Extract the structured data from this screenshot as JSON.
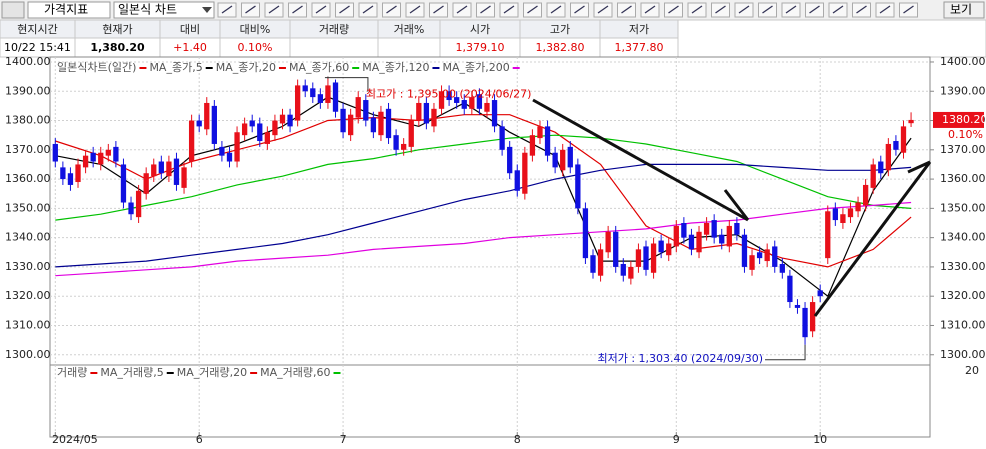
{
  "toolbar": {
    "indicator": "가격지표",
    "chart_style": "일본식 차트",
    "view": "보기"
  },
  "quote": {
    "columns": [
      {
        "label": "현지시간",
        "value": "10/22 15:41"
      },
      {
        "label": "현재가",
        "value": "1,380.20"
      },
      {
        "label": "대비",
        "value": "+1.40"
      },
      {
        "label": "대비%",
        "value": "0.10%"
      },
      {
        "label": "거래량"
      },
      {
        "label": "거래%"
      },
      {
        "label": "시가",
        "value": "1,379.10"
      },
      {
        "label": "고가",
        "value": "1,382.80"
      },
      {
        "label": "저가",
        "value": "1,377.80"
      }
    ]
  },
  "chart_data": {
    "type": "candlestick",
    "legend_title": "일본식차트(일간)",
    "legend_title_color": "#e00000",
    "up_color": "#e8101a",
    "down_color": "#1010e0",
    "open": [
      1372,
      1364,
      1362,
      1359,
      1364,
      1369,
      1365,
      1368,
      1371,
      1365,
      1352,
      1347,
      1355,
      1361,
      1366,
      1361,
      1367,
      1357,
      1366,
      1380,
      1377,
      1385,
      1371,
      1369,
      1366,
      1375,
      1380,
      1379,
      1372,
      1375,
      1379,
      1382,
      1380,
      1392,
      1391,
      1389,
      1386,
      1393,
      1384,
      1375,
      1381,
      1387,
      1381,
      1375,
      1384,
      1375,
      1370,
      1371,
      1380,
      1386,
      1378,
      1384,
      1390,
      1388,
      1387,
      1384,
      1389,
      1383,
      1387,
      1378,
      1371,
      1363,
      1355,
      1368,
      1374,
      1378,
      1369,
      1363,
      1371,
      1365,
      1350,
      1334,
      1327,
      1335,
      1342,
      1331,
      1326,
      1330,
      1337,
      1328,
      1339,
      1334,
      1337,
      1345,
      1341,
      1335,
      1341,
      1346,
      1341,
      1337,
      1345,
      1341,
      1329,
      1335,
      1332,
      1337,
      1331,
      1327,
      1317,
      1316,
      1308,
      1322,
      1333,
      1350,
      1345,
      1347,
      1349,
      1351,
      1357,
      1366,
      1363,
      1373,
      1369,
      1379.1
    ],
    "high": [
      1374,
      1366,
      1364,
      1367,
      1370,
      1371,
      1371,
      1372,
      1373,
      1367,
      1354,
      1358,
      1364,
      1367,
      1368,
      1368,
      1369,
      1366,
      1382,
      1382,
      1388,
      1387,
      1373,
      1371,
      1378,
      1381,
      1382,
      1381,
      1378,
      1382,
      1384,
      1384,
      1394,
      1394,
      1393,
      1391,
      1395,
      1394,
      1386,
      1384,
      1390,
      1389,
      1383,
      1385,
      1386,
      1377,
      1374,
      1382,
      1388,
      1388,
      1386,
      1392,
      1392,
      1390,
      1389,
      1390,
      1391,
      1388,
      1389,
      1380,
      1373,
      1365,
      1371,
      1377,
      1380,
      1380,
      1371,
      1372,
      1373,
      1367,
      1352,
      1336,
      1338,
      1344,
      1344,
      1333,
      1332,
      1338,
      1339,
      1340,
      1341,
      1340,
      1346,
      1347,
      1343,
      1344,
      1347,
      1348,
      1343,
      1346,
      1347,
      1343,
      1336,
      1337,
      1338,
      1339,
      1333,
      1329,
      1319,
      1318,
      1320,
      1324,
      1351,
      1352,
      1350,
      1352,
      1354,
      1360,
      1367,
      1368,
      1374,
      1375,
      1380,
      1382.8
    ],
    "low": [
      1364,
      1358,
      1356,
      1357,
      1362,
      1364,
      1363,
      1366,
      1364,
      1350,
      1346,
      1345,
      1353,
      1359,
      1360,
      1359,
      1356,
      1355,
      1364,
      1376,
      1375,
      1370,
      1366,
      1364,
      1364,
      1373,
      1376,
      1371,
      1370,
      1373,
      1377,
      1376,
      1378,
      1388,
      1386,
      1384,
      1384,
      1381,
      1374,
      1373,
      1379,
      1378,
      1374,
      1373,
      1372,
      1368,
      1368,
      1369,
      1378,
      1377,
      1376,
      1382,
      1385,
      1384,
      1382,
      1382,
      1382,
      1381,
      1376,
      1368,
      1360,
      1354,
      1353,
      1366,
      1372,
      1366,
      1362,
      1361,
      1362,
      1348,
      1331,
      1326,
      1325,
      1333,
      1328,
      1325,
      1324,
      1328,
      1327,
      1326,
      1333,
      1332,
      1335,
      1338,
      1334,
      1333,
      1339,
      1338,
      1336,
      1335,
      1339,
      1328,
      1327,
      1331,
      1330,
      1328,
      1326,
      1316,
      1314,
      1303.4,
      1306,
      1318,
      1331,
      1344,
      1343,
      1345,
      1347,
      1349,
      1355,
      1360,
      1361,
      1368,
      1367,
      1377.8
    ],
    "close": [
      1366,
      1360,
      1358,
      1365,
      1368,
      1366,
      1369,
      1370,
      1366,
      1352,
      1348,
      1356,
      1362,
      1365,
      1362,
      1366,
      1358,
      1364,
      1380,
      1378,
      1386,
      1372,
      1368,
      1366,
      1376,
      1379,
      1378,
      1373,
      1376,
      1380,
      1382,
      1378,
      1392,
      1390,
      1388,
      1386,
      1392,
      1383,
      1376,
      1382,
      1388,
      1380,
      1376,
      1383,
      1374,
      1370,
      1372,
      1380,
      1386,
      1379,
      1384,
      1390,
      1387,
      1386,
      1384,
      1388,
      1384,
      1386,
      1378,
      1370,
      1362,
      1356,
      1369,
      1375,
      1378,
      1368,
      1364,
      1370,
      1364,
      1350,
      1333,
      1328,
      1336,
      1342,
      1330,
      1327,
      1330,
      1336,
      1329,
      1338,
      1335,
      1338,
      1344,
      1340,
      1336,
      1342,
      1345,
      1340,
      1338,
      1344,
      1341,
      1330,
      1334,
      1333,
      1336,
      1330,
      1328,
      1318,
      1316,
      1306,
      1318,
      1320,
      1349,
      1346,
      1348,
      1350,
      1352,
      1358,
      1365,
      1362,
      1372,
      1370,
      1378,
      1380.2
    ],
    "last_price_label": "1380.20",
    "last_change_label": "0.10%",
    "high_annotation": "최고가 : 1,395.00 (2024/06/27)",
    "high_annotation_color": "#e00000",
    "low_annotation": "최저가 : 1,303.40 (2024/09/30)",
    "low_annotation_color": "#1010c0",
    "series": [
      {
        "name": "MA_종가,5",
        "color": "#000000",
        "x": [
          0,
          6,
          12,
          18,
          24,
          30,
          36,
          42,
          48,
          54,
          60,
          66,
          72,
          78,
          84,
          90,
          96,
          102,
          108,
          113
        ],
        "values": [
          1368,
          1365,
          1355,
          1368,
          1372,
          1378,
          1388,
          1382,
          1378,
          1386,
          1376,
          1368,
          1332,
          1332,
          1340,
          1341,
          1332,
          1320,
          1356,
          1374
        ]
      },
      {
        "name": "MA_종가,20",
        "color": "#e00000",
        "x": [
          0,
          6,
          12,
          18,
          24,
          30,
          36,
          42,
          48,
          54,
          60,
          66,
          72,
          78,
          84,
          90,
          96,
          102,
          108,
          113
        ],
        "values": [
          1373,
          1368,
          1360,
          1366,
          1370,
          1374,
          1380,
          1381,
          1380,
          1382,
          1382,
          1376,
          1365,
          1344,
          1336,
          1338,
          1333,
          1330,
          1336,
          1347
        ]
      },
      {
        "name": "MA_종가,60",
        "color": "#00c000",
        "x": [
          0,
          6,
          12,
          18,
          24,
          30,
          36,
          42,
          48,
          54,
          60,
          66,
          72,
          78,
          84,
          90,
          96,
          102,
          108,
          113
        ],
        "values": [
          1346,
          1348,
          1351,
          1354,
          1358,
          1361,
          1365,
          1367,
          1370,
          1372,
          1374,
          1375,
          1374,
          1372,
          1369,
          1366,
          1360,
          1354,
          1351,
          1350
        ]
      },
      {
        "name": "MA_종가,120",
        "color": "#000090",
        "x": [
          0,
          6,
          12,
          18,
          24,
          30,
          36,
          42,
          48,
          54,
          60,
          66,
          72,
          78,
          84,
          90,
          96,
          102,
          108,
          113
        ],
        "values": [
          1330,
          1331,
          1332,
          1334,
          1336,
          1338,
          1341,
          1345,
          1349,
          1353,
          1356,
          1360,
          1363,
          1365,
          1365,
          1365,
          1364,
          1363,
          1363,
          1364
        ]
      },
      {
        "name": "MA_종가,200",
        "color": "#e000e0",
        "x": [
          0,
          6,
          12,
          18,
          24,
          30,
          36,
          42,
          48,
          54,
          60,
          66,
          72,
          78,
          84,
          90,
          96,
          102,
          108,
          113
        ],
        "values": [
          1327,
          1328,
          1329,
          1330,
          1332,
          1333,
          1334,
          1336,
          1337,
          1338,
          1340,
          1341,
          1342,
          1343,
          1345,
          1346,
          1348,
          1350,
          1351,
          1352
        ]
      }
    ],
    "xlim": [
      -0.7,
      115.5
    ],
    "xticks": [
      {
        "value": 0,
        "label": "2024/05"
      },
      {
        "value": 19,
        "label": "6"
      },
      {
        "value": 38,
        "label": "7"
      },
      {
        "value": 61,
        "label": "8"
      },
      {
        "value": 82,
        "label": "9"
      },
      {
        "value": 101,
        "label": "10"
      }
    ],
    "ylim": [
      1296.5,
      1401.7
    ],
    "yticks": [
      {
        "value": 1300,
        "label": "1300.00"
      },
      {
        "value": 1310,
        "label": "1310.00"
      },
      {
        "value": 1320,
        "label": "1320.00"
      },
      {
        "value": 1330,
        "label": "1330.00"
      },
      {
        "value": 1340,
        "label": "1340.00"
      },
      {
        "value": 1350,
        "label": "1350.00"
      },
      {
        "value": 1360,
        "label": "1360.00"
      },
      {
        "value": 1370,
        "label": "1370.00"
      },
      {
        "value": 1380,
        "label": "1380.00"
      },
      {
        "value": 1390,
        "label": "1390.00"
      },
      {
        "value": 1400,
        "label": "1400.00"
      }
    ],
    "grid": true,
    "volume_panel": {
      "axis_label": "20",
      "legend": [
        {
          "name": "거래량",
          "color": "#e00000"
        },
        {
          "name": "MA_거래량,5",
          "color": "#000000"
        },
        {
          "name": "MA_거래량,20",
          "color": "#e00000"
        },
        {
          "name": "MA_거래량,60",
          "color": "#00c000"
        }
      ]
    }
  }
}
